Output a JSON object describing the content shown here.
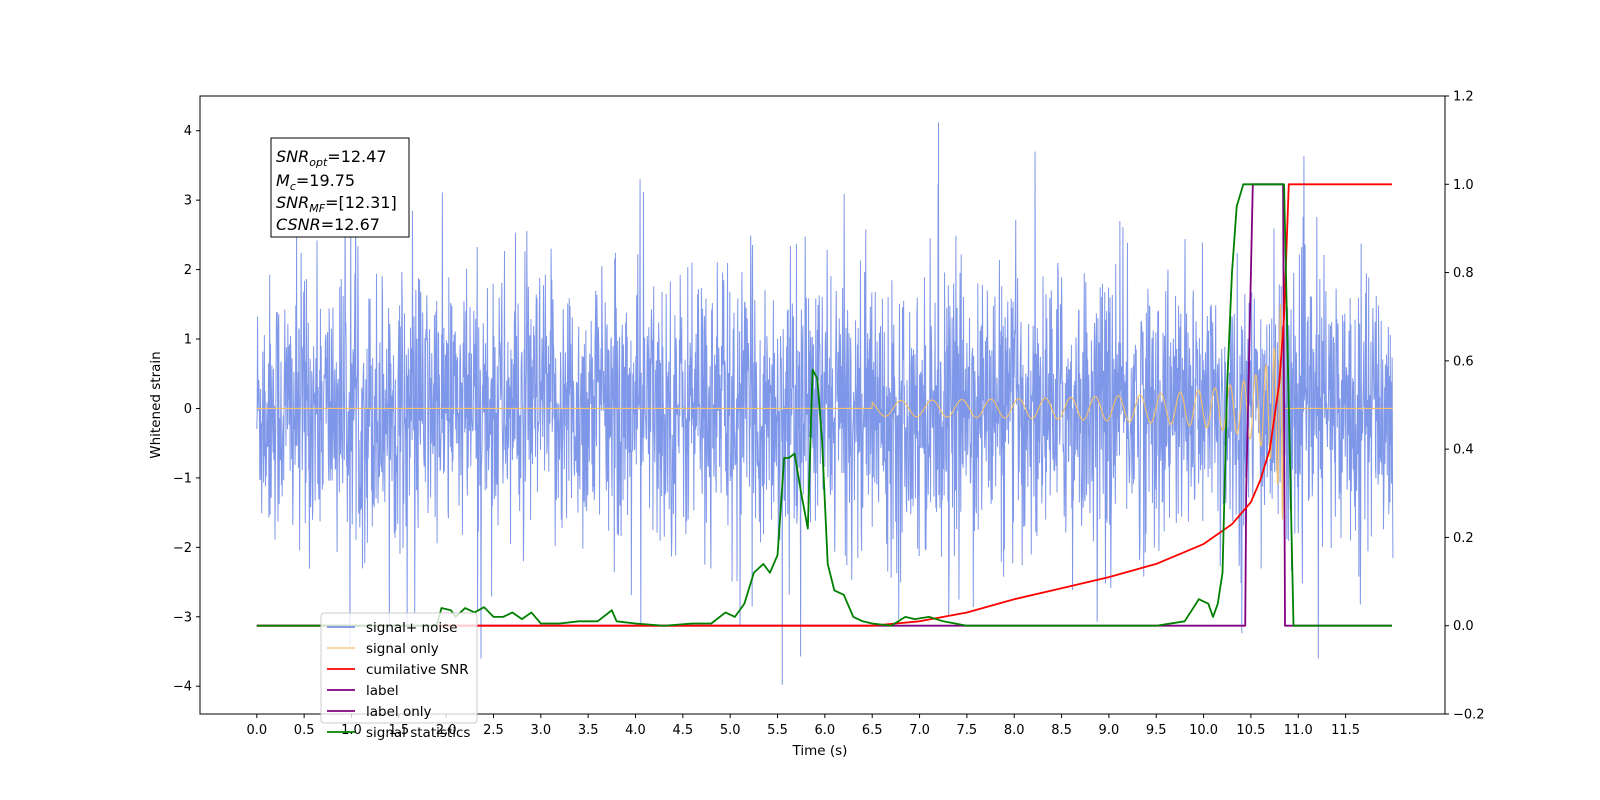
{
  "chart_data": {
    "type": "line",
    "xlabel": "Time (s)",
    "ylabel_left": "Whitened strain",
    "ylabel_right": "",
    "xlim": [
      -0.6,
      12.55
    ],
    "ylim_left": [
      -4.4,
      4.5
    ],
    "ylim_right": [
      -0.2,
      1.2
    ],
    "x_ticks": [
      "0.0",
      "0.5",
      "1.0",
      "1.5",
      "2.0",
      "2.5",
      "3.0",
      "3.5",
      "4.0",
      "4.5",
      "5.0",
      "5.5",
      "6.0",
      "6.5",
      "7.0",
      "7.5",
      "8.0",
      "8.5",
      "9.0",
      "9.5",
      "10.0",
      "10.5",
      "11.0",
      "11.5"
    ],
    "y_ticks_left": [
      "4",
      "3",
      "2",
      "1",
      "0",
      "−1",
      "−2",
      "−3",
      "−4"
    ],
    "y_ticks_right": [
      "1.2",
      "1.0",
      "0.8",
      "0.6",
      "0.4",
      "0.2",
      "0.0",
      "−0.2"
    ],
    "grid": false,
    "legend_position": "lower-left",
    "annotation": {
      "snr_opt_base": "SNR",
      "snr_opt_sub": "opt",
      "snr_opt_val": "=12.47",
      "mc_base": "M",
      "mc_sub": "c",
      "mc_val": "=19.75",
      "snr_mf_base": "SNR",
      "snr_mf_sub": "MF",
      "snr_mf_val": "=[12.31]",
      "csnr_base": "CSNR",
      "csnr_val": "=12.67"
    },
    "series": [
      {
        "name": "signal+ noise",
        "axis": "left",
        "color": "#7891e7",
        "description_values": {
          "x_start": 0.0,
          "x_end": 12.0,
          "typical_range": [
            -2.0,
            2.0
          ],
          "max": 4.12,
          "max_x": 7.2,
          "min": -3.98,
          "min_x": 5.55
        }
      },
      {
        "name": "signal only",
        "axis": "left",
        "color": "#f5c26b",
        "description_values": {
          "x_start": 0.0,
          "x_end": 12.0,
          "merger_x": 10.85,
          "peak_amplitude": 1.6
        }
      },
      {
        "name": "cumilative SNR",
        "axis": "right",
        "color": "#ff0000",
        "x": [
          0.0,
          6.5,
          7.0,
          7.5,
          8.0,
          8.5,
          9.0,
          9.5,
          10.0,
          10.3,
          10.5,
          10.6,
          10.7,
          10.8,
          10.85,
          10.9,
          10.95,
          11.0,
          11.5,
          11.99
        ],
        "values": [
          0.0,
          0.0,
          0.01,
          0.03,
          0.06,
          0.085,
          0.11,
          0.14,
          0.185,
          0.23,
          0.28,
          0.33,
          0.4,
          0.55,
          0.7,
          1.0,
          1.0,
          1.0,
          1.0,
          1.0
        ]
      },
      {
        "name": "label",
        "axis": "right",
        "color": "#800080",
        "x": [
          0.0,
          10.44,
          10.45,
          10.52,
          10.84,
          10.86,
          11.99
        ],
        "values": [
          0.0,
          0.0,
          0.3,
          1.0,
          1.0,
          0.0,
          0.0
        ]
      },
      {
        "name": "label only",
        "axis": "right",
        "color": "#800080",
        "hidden": true,
        "x": [],
        "values": []
      },
      {
        "name": "signal statistics",
        "axis": "right",
        "color": "#008000",
        "x": [
          0.0,
          1.9,
          1.95,
          2.05,
          2.1,
          2.2,
          2.3,
          2.4,
          2.5,
          2.6,
          2.7,
          2.8,
          2.9,
          3.0,
          3.2,
          3.4,
          3.6,
          3.75,
          3.8,
          4.0,
          4.3,
          4.6,
          4.8,
          4.95,
          5.05,
          5.15,
          5.25,
          5.35,
          5.42,
          5.5,
          5.57,
          5.62,
          5.68,
          5.75,
          5.82,
          5.87,
          5.92,
          5.97,
          6.03,
          6.1,
          6.2,
          6.3,
          6.4,
          6.5,
          6.7,
          6.85,
          6.95,
          7.1,
          7.25,
          7.5,
          7.6,
          8.0,
          9.5,
          9.8,
          9.95,
          10.05,
          10.1,
          10.15,
          10.2,
          10.25,
          10.3,
          10.35,
          10.42,
          10.48,
          10.55,
          10.85,
          10.9,
          10.95,
          11.99
        ],
        "values": [
          0.0,
          0.0,
          0.04,
          0.035,
          0.02,
          0.04,
          0.03,
          0.042,
          0.02,
          0.02,
          0.03,
          0.015,
          0.03,
          0.005,
          0.005,
          0.01,
          0.01,
          0.035,
          0.01,
          0.005,
          0.0,
          0.005,
          0.005,
          0.03,
          0.02,
          0.05,
          0.12,
          0.14,
          0.12,
          0.16,
          0.38,
          0.38,
          0.39,
          0.3,
          0.22,
          0.58,
          0.56,
          0.42,
          0.14,
          0.08,
          0.07,
          0.02,
          0.01,
          0.005,
          0.0,
          0.02,
          0.015,
          0.02,
          0.01,
          0.0,
          0.0,
          0.0,
          0.0,
          0.01,
          0.06,
          0.05,
          0.02,
          0.05,
          0.12,
          0.55,
          0.8,
          0.95,
          1.0,
          1.0,
          1.0,
          1.0,
          0.5,
          0.0,
          0.0
        ]
      }
    ]
  }
}
